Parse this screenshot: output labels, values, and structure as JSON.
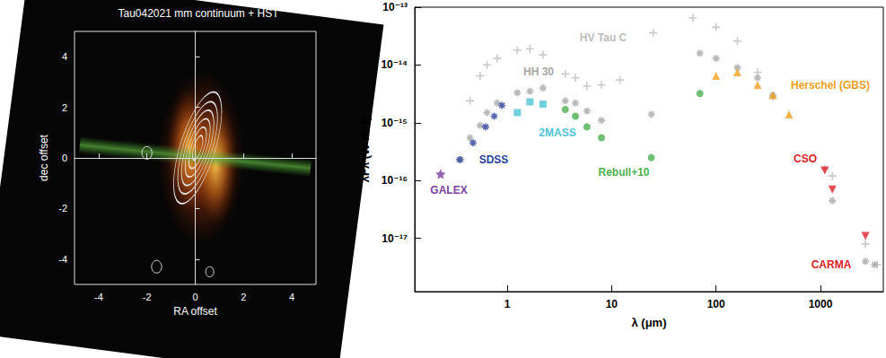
{
  "chart_data": [
    {
      "type": "image",
      "title": "Tau042021 mm continuum + HST",
      "x_label": "RA offset",
      "y_label": "dec offset",
      "xlim": [
        -5,
        5
      ],
      "ylim": [
        -5,
        5
      ],
      "xticks": [
        -4,
        -2,
        0,
        2,
        4
      ],
      "yticks": [
        -4,
        -2,
        0,
        2,
        4
      ]
    },
    {
      "type": "scatter",
      "log": true,
      "x_label": "λ (μm)",
      "y_label": "λFλ (W m⁻²)",
      "xlim": [
        0.13,
        4000
      ],
      "ylim": [
        1.2e-18,
        1e-13
      ],
      "xticks": [
        1,
        10,
        100,
        1000
      ],
      "yticks": [
        {
          "value": 1e-13,
          "label": "10⁻¹³"
        },
        {
          "value": 1e-14,
          "label": "10⁻¹⁴"
        },
        {
          "value": 1e-15,
          "label": "10⁻¹⁵"
        },
        {
          "value": 1e-16,
          "label": "10⁻¹⁶"
        },
        {
          "value": 1e-17,
          "label": "10⁻¹⁷"
        }
      ],
      "series": [
        {
          "name": "HV Tau C",
          "color": "#bdbdbd",
          "marker": "plus",
          "x": [
            0.44,
            0.55,
            0.64,
            0.8,
            1.25,
            1.65,
            2.2,
            3.6,
            4.5,
            5.8,
            8.0,
            12,
            25,
            60,
            100,
            160,
            250,
            350,
            1100,
            1300,
            2700,
            3500
          ],
          "values": [
            2.4e-15,
            6.5e-15,
            1e-14,
            1.3e-14,
            1.8e-14,
            1.9e-14,
            1.5e-14,
            7e-15,
            6e-15,
            4.3e-15,
            4.5e-15,
            5.5e-15,
            3.6e-14,
            6.5e-14,
            4.5e-14,
            2.6e-14,
            7.5e-15,
            2.8e-15,
            1.6e-16,
            1.2e-16,
            8e-18,
            3.5e-18
          ]
        },
        {
          "name": "HH 30",
          "color": "#a6a6a6",
          "marker": "asterisk",
          "x": [
            0.36,
            0.44,
            0.55,
            0.64,
            0.8,
            1.25,
            1.65,
            2.2,
            3.6,
            4.5,
            5.8,
            8.0,
            24,
            70,
            100,
            160,
            250,
            350,
            1300,
            2700,
            3300
          ],
          "values": [
            2.3e-16,
            5.5e-16,
            9e-16,
            1.5e-15,
            2.2e-15,
            3.3e-15,
            3.5e-15,
            4e-15,
            2.4e-15,
            2.2e-15,
            1.6e-15,
            1.1e-15,
            1.4e-15,
            1.6e-14,
            1.3e-14,
            9e-15,
            6e-15,
            3e-15,
            4.5e-17,
            4e-18,
            3.5e-18
          ]
        },
        {
          "name": "GALEX",
          "color": "#7b3fa0",
          "marker": "star",
          "x": [
            0.23
          ],
          "values": [
            1.3e-16
          ]
        },
        {
          "name": "SDSS",
          "color": "#2a3f9a",
          "marker": "asterisk",
          "x": [
            0.35,
            0.47,
            0.62,
            0.75,
            0.89
          ],
          "values": [
            2.3e-16,
            4.5e-16,
            8.5e-16,
            1.3e-15,
            2e-15
          ]
        },
        {
          "name": "2MASS",
          "color": "#4ec4d4",
          "marker": "square",
          "x": [
            1.25,
            1.65,
            2.2
          ],
          "values": [
            1.5e-15,
            2.3e-15,
            2.1e-15
          ]
        },
        {
          "name": "Rebull+10",
          "color": "#4caf50",
          "marker": "circle",
          "x": [
            3.6,
            4.5,
            5.8,
            8.0,
            24,
            70
          ],
          "values": [
            1.7e-15,
            1.3e-15,
            8.5e-16,
            5.5e-16,
            2.5e-16,
            3.2e-15
          ]
        },
        {
          "name": "Herschel (GBS)",
          "color": "#f0a020",
          "marker": "triangle",
          "x": [
            100,
            160,
            250,
            350,
            500
          ],
          "values": [
            6.5e-15,
            7.5e-15,
            4.5e-15,
            3e-15,
            1.4e-15
          ]
        },
        {
          "name": "CSO",
          "color": "#e0202a",
          "marker": "triangle-down",
          "x": [
            1100
          ],
          "values": [
            1.5e-16
          ]
        },
        {
          "name": "CARMA",
          "color": "#e0202a",
          "marker": "triangle-down",
          "x": [
            1300,
            2700
          ],
          "values": [
            7e-17,
            1.1e-17
          ]
        }
      ]
    }
  ]
}
